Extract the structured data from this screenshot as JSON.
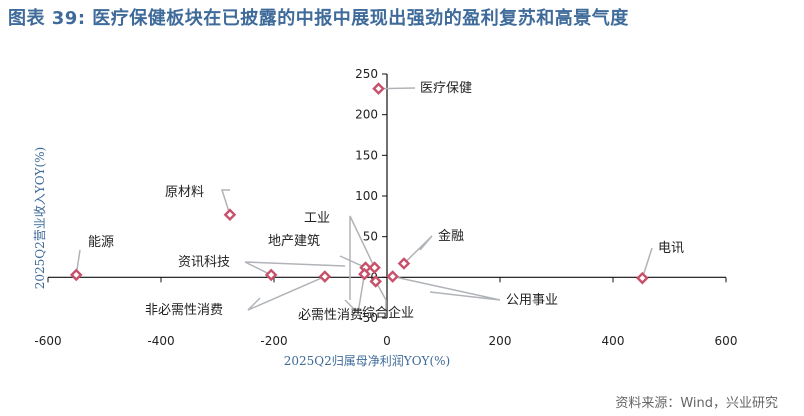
{
  "figure_title": "图表 39: 医疗保健板块在已披露的中报中展现出强劲的盈利复苏和高景气度",
  "source": "资料来源：Wind，兴业研究",
  "chart_data": {
    "type": "scatter",
    "title": "",
    "xlabel": "2025Q2归属母净利润YOY(%)",
    "ylabel": "2025Q2营业收入YOY(%)",
    "xlim": [
      -600,
      600
    ],
    "ylim": [
      -50,
      250
    ],
    "xticks": [
      -600,
      -400,
      -200,
      0,
      200,
      400,
      600
    ],
    "yticks": [
      -50,
      0,
      50,
      100,
      150,
      200,
      250
    ],
    "grid": false,
    "marker_color": "#c8506a",
    "points": [
      {
        "label": "医疗保健",
        "x": -15,
        "y": 232
      },
      {
        "label": "原材料",
        "x": -278,
        "y": 77
      },
      {
        "label": "能源",
        "x": -550,
        "y": 3
      },
      {
        "label": "工业",
        "x": -22,
        "y": 12
      },
      {
        "label": "地产建筑",
        "x": -38,
        "y": 12
      },
      {
        "label": "金融",
        "x": 30,
        "y": 17
      },
      {
        "label": "电讯",
        "x": 452,
        "y": -1
      },
      {
        "label": "资讯科技",
        "x": -205,
        "y": 3
      },
      {
        "label": "非必需性消费",
        "x": -110,
        "y": 1
      },
      {
        "label": "必需性消费",
        "x": -40,
        "y": 4
      },
      {
        "label": "综合企业",
        "x": -20,
        "y": -5
      },
      {
        "label": "公用事业",
        "x": 10,
        "y": 1
      }
    ]
  }
}
